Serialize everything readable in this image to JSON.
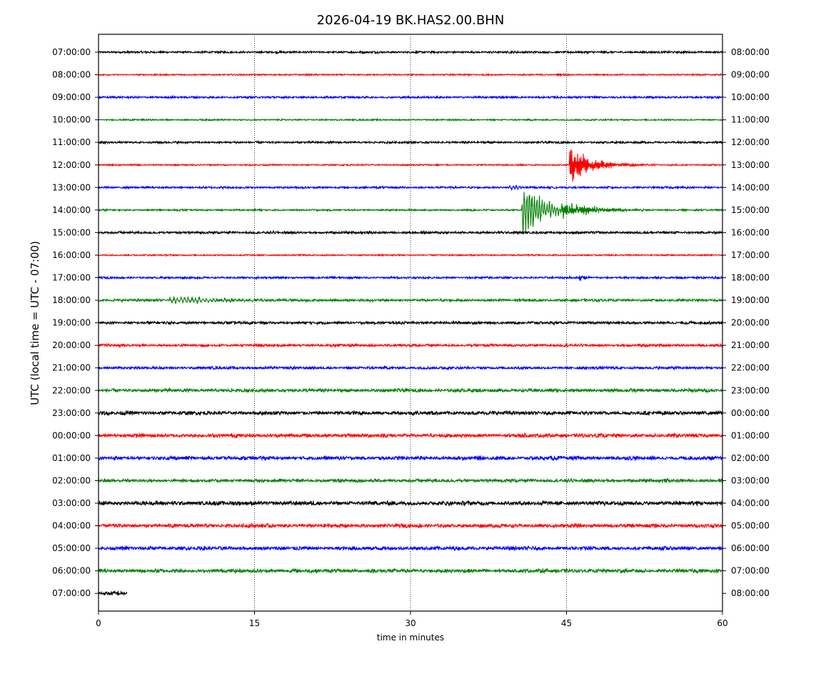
{
  "chart_data": {
    "type": "line",
    "title": "2026-04-19 BK.HAS2.00.BHN",
    "xlabel": "time in minutes",
    "ylabel": "UTC (local time = UTC - 07:00)",
    "xlim": [
      0,
      60
    ],
    "x_ticks": [
      0,
      15,
      30,
      45,
      60
    ],
    "grid": "vertical dotted lines at 15, 30, 45",
    "trace_colors": [
      "#000000",
      "#ff0000",
      "#0000ff",
      "#008000"
    ],
    "left_labels": [
      "07:00:00",
      "08:00:00",
      "09:00:00",
      "10:00:00",
      "11:00:00",
      "12:00:00",
      "13:00:00",
      "14:00:00",
      "15:00:00",
      "16:00:00",
      "17:00:00",
      "18:00:00",
      "19:00:00",
      "20:00:00",
      "21:00:00",
      "22:00:00",
      "23:00:00",
      "00:00:00",
      "01:00:00",
      "02:00:00",
      "03:00:00",
      "04:00:00",
      "05:00:00",
      "06:00:00",
      "07:00:00"
    ],
    "right_labels": [
      "08:00:00",
      "09:00:00",
      "10:00:00",
      "11:00:00",
      "12:00:00",
      "13:00:00",
      "14:00:00",
      "15:00:00",
      "16:00:00",
      "17:00:00",
      "18:00:00",
      "19:00:00",
      "20:00:00",
      "21:00:00",
      "22:00:00",
      "23:00:00",
      "00:00:00",
      "01:00:00",
      "02:00:00",
      "03:00:00",
      "04:00:00",
      "05:00:00",
      "06:00:00",
      "07:00:00",
      "08:00:00"
    ],
    "rows": [
      {
        "start_min": 0,
        "end_min": 60,
        "noise": 1.0,
        "events": []
      },
      {
        "start_min": 0,
        "end_min": 60,
        "noise": 0.7,
        "events": []
      },
      {
        "start_min": 0,
        "end_min": 60,
        "noise": 1.0,
        "events": []
      },
      {
        "start_min": 0,
        "end_min": 60,
        "noise": 0.7,
        "events": []
      },
      {
        "start_min": 0,
        "end_min": 60,
        "noise": 1.0,
        "events": []
      },
      {
        "start_min": 0,
        "end_min": 60,
        "noise": 0.7,
        "events": [
          {
            "t": 45.3,
            "amp": 28,
            "decay": 2.2,
            "period": 0.05
          }
        ]
      },
      {
        "start_min": 0,
        "end_min": 60,
        "noise": 1.0,
        "events": [
          {
            "t": 39.5,
            "amp": 3,
            "decay": 1.5,
            "period": 0.3
          }
        ]
      },
      {
        "start_min": 0,
        "end_min": 60,
        "noise": 0.8,
        "events": [
          {
            "t": 40.7,
            "amp": 38,
            "decay": 2.5,
            "period": 0.04
          },
          {
            "t": 44.5,
            "amp": 12,
            "decay": 3.0,
            "period": 0.05
          }
        ]
      },
      {
        "start_min": 0,
        "end_min": 60,
        "noise": 1.2,
        "events": []
      },
      {
        "start_min": 0,
        "end_min": 60,
        "noise": 0.7,
        "events": []
      },
      {
        "start_min": 0,
        "end_min": 60,
        "noise": 1.0,
        "events": [
          {
            "t": 46.2,
            "amp": 4,
            "decay": 0.8,
            "period": 0.1
          },
          {
            "t": 55.5,
            "amp": 3,
            "decay": 0.6,
            "period": 0.1
          }
        ]
      },
      {
        "start_min": 0,
        "end_min": 60,
        "noise": 1.2,
        "events": [
          {
            "t": 6.8,
            "amp": 6,
            "decay": 5.0,
            "period": 0.35
          }
        ]
      },
      {
        "start_min": 0,
        "end_min": 60,
        "noise": 1.3,
        "events": []
      },
      {
        "start_min": 0,
        "end_min": 60,
        "noise": 1.3,
        "events": []
      },
      {
        "start_min": 0,
        "end_min": 60,
        "noise": 1.3,
        "events": []
      },
      {
        "start_min": 0,
        "end_min": 60,
        "noise": 1.6,
        "events": []
      },
      {
        "start_min": 0,
        "end_min": 60,
        "noise": 1.8,
        "events": []
      },
      {
        "start_min": 0,
        "end_min": 60,
        "noise": 1.8,
        "events": []
      },
      {
        "start_min": 0,
        "end_min": 60,
        "noise": 1.8,
        "events": []
      },
      {
        "start_min": 0,
        "end_min": 60,
        "noise": 1.6,
        "events": []
      },
      {
        "start_min": 0,
        "end_min": 60,
        "noise": 2.0,
        "events": []
      },
      {
        "start_min": 0,
        "end_min": 60,
        "noise": 1.8,
        "events": []
      },
      {
        "start_min": 0,
        "end_min": 60,
        "noise": 1.8,
        "events": []
      },
      {
        "start_min": 0,
        "end_min": 60,
        "noise": 1.8,
        "events": []
      },
      {
        "start_min": 0,
        "end_min": 2.7,
        "noise": 2.0,
        "events": []
      }
    ]
  }
}
